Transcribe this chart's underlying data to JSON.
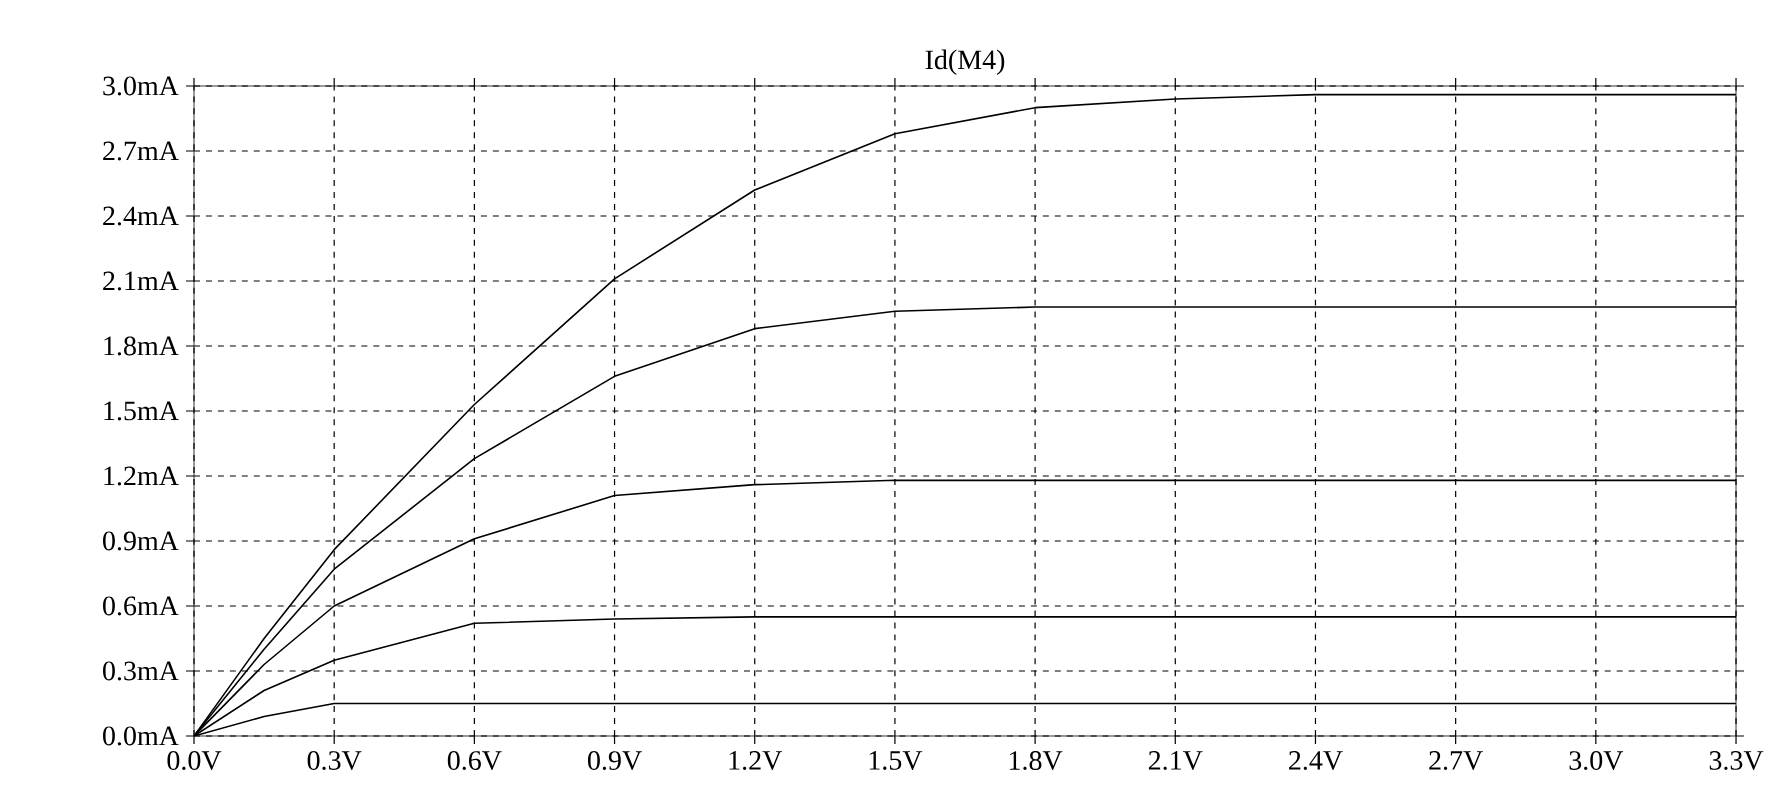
{
  "chart_data": {
    "type": "line",
    "title": "Id(M4)",
    "xlim": [
      0,
      3.3
    ],
    "ylim": [
      0,
      3.0
    ],
    "xticks": [
      {
        "value": 0,
        "label": "0.0V"
      },
      {
        "value": 0.3,
        "label": "0.3V"
      },
      {
        "value": 0.6,
        "label": "0.6V"
      },
      {
        "value": 0.9,
        "label": "0.9V"
      },
      {
        "value": 1.2,
        "label": "1.2V"
      },
      {
        "value": 1.5,
        "label": "1.5V"
      },
      {
        "value": 1.8,
        "label": "1.8V"
      },
      {
        "value": 2.1,
        "label": "2.1V"
      },
      {
        "value": 2.4,
        "label": "2.4V"
      },
      {
        "value": 2.7,
        "label": "2.7V"
      },
      {
        "value": 3.0,
        "label": "3.0V"
      },
      {
        "value": 3.3,
        "label": "3.3V"
      }
    ],
    "yticks": [
      {
        "value": 0,
        "label": "0.0mA"
      },
      {
        "value": 0.3,
        "label": "0.3mA"
      },
      {
        "value": 0.6,
        "label": "0.6mA"
      },
      {
        "value": 0.9,
        "label": "0.9mA"
      },
      {
        "value": 1.2,
        "label": "1.2mA"
      },
      {
        "value": 1.5,
        "label": "1.5mA"
      },
      {
        "value": 1.8,
        "label": "1.8mA"
      },
      {
        "value": 2.1,
        "label": "2.1mA"
      },
      {
        "value": 2.4,
        "label": "2.4mA"
      },
      {
        "value": 2.7,
        "label": "2.7mA"
      },
      {
        "value": 3.0,
        "label": "3.0mA"
      }
    ],
    "grid": true,
    "line_style": "solid",
    "marker": "none",
    "series": [
      {
        "color": "#000000",
        "x": [
          0,
          0.15,
          0.3,
          0.6,
          0.9,
          1.2,
          1.5,
          1.8,
          2.1,
          2.4,
          3.3
        ],
        "values": [
          0,
          0.45,
          0.86,
          1.53,
          2.11,
          2.52,
          2.78,
          2.9,
          2.94,
          2.96,
          2.96
        ]
      },
      {
        "color": "#000000",
        "x": [
          0,
          0.15,
          0.3,
          0.6,
          0.9,
          1.2,
          1.5,
          1.8,
          3.3
        ],
        "values": [
          0,
          0.4,
          0.77,
          1.28,
          1.66,
          1.88,
          1.96,
          1.98,
          1.98
        ]
      },
      {
        "color": "#000000",
        "x": [
          0,
          0.15,
          0.3,
          0.6,
          0.9,
          1.2,
          1.5,
          3.3
        ],
        "values": [
          0,
          0.33,
          0.6,
          0.91,
          1.11,
          1.16,
          1.18,
          1.18
        ]
      },
      {
        "color": "#000000",
        "x": [
          0,
          0.15,
          0.3,
          0.6,
          0.9,
          1.2,
          3.3
        ],
        "values": [
          0,
          0.21,
          0.35,
          0.52,
          0.54,
          0.55,
          0.55
        ]
      },
      {
        "color": "#000000",
        "x": [
          0,
          0.15,
          0.3,
          0.6,
          3.3
        ],
        "values": [
          0,
          0.09,
          0.15,
          0.15,
          0.15
        ]
      }
    ]
  }
}
